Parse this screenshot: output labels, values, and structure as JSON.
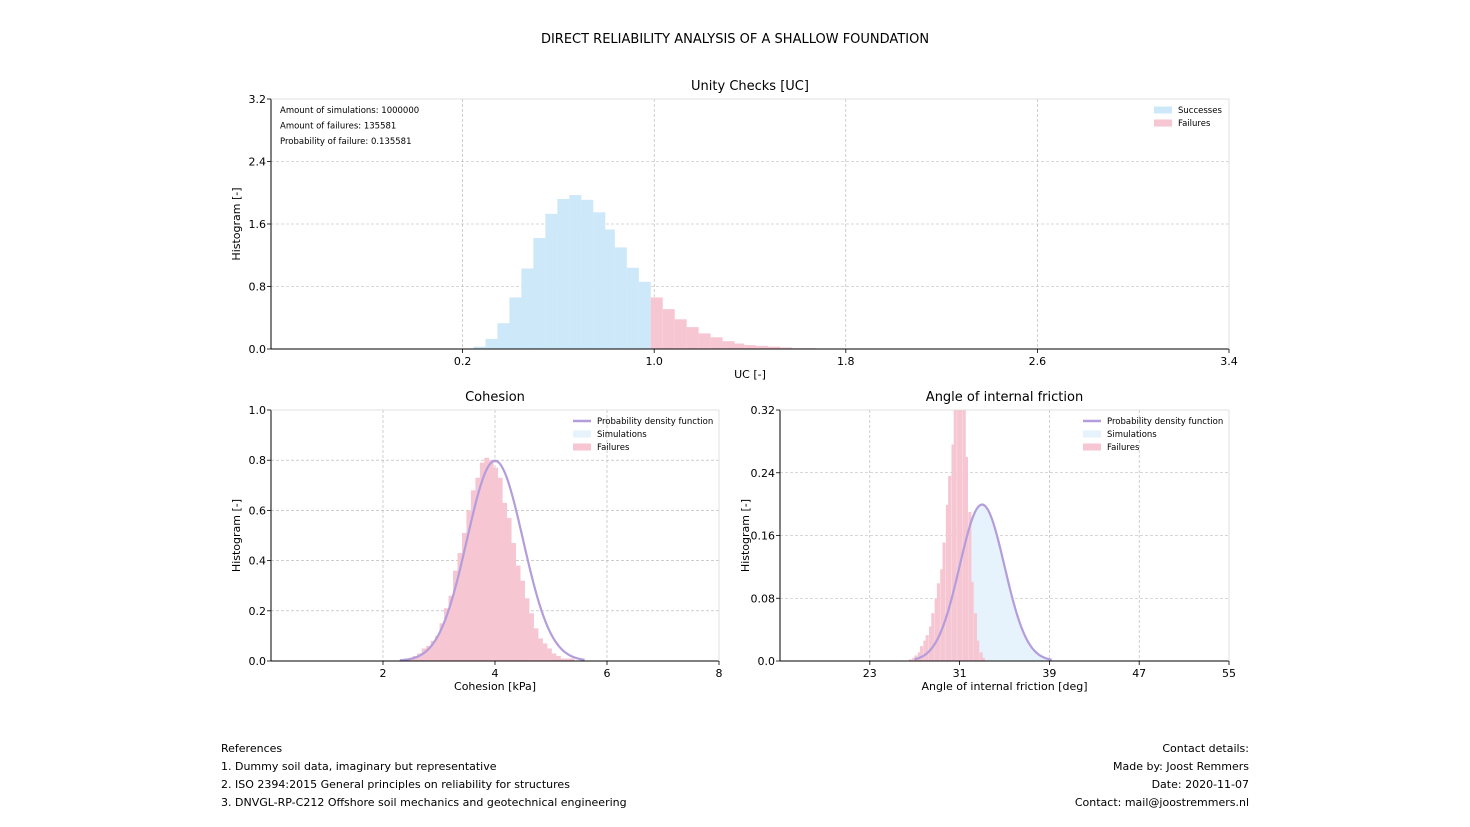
{
  "page": {
    "title": "DIRECT RELIABILITY ANALYSIS OF A SHALLOW FOUNDATION"
  },
  "references": {
    "heading": "References",
    "items": [
      "1. Dummy soil data, imaginary but representative",
      "2. ISO 2394:2015 General principles on reliability for structures",
      "3. DNVGL-RP-C212 Offshore soil mechanics and geotechnical engineering"
    ]
  },
  "contact": {
    "heading": "Contact details:",
    "items": [
      "Made by: Joost Remmers",
      "Date: 2020-11-07",
      "Contact: mail@joostremmers.nl"
    ]
  },
  "colors": {
    "success": "#cde8f8",
    "failure": "#f7c6d3",
    "simulation": "#e6f3fc",
    "pdf": "#b39ddb",
    "grid": "#b0b0b0"
  },
  "chart_data": [
    {
      "id": "uc",
      "type": "bar",
      "title": "Unity Checks [UC]",
      "xlabel": "UC [-]",
      "ylabel": "Histogram [-]",
      "xlim": [
        -0.6,
        3.4
      ],
      "ylim": [
        0,
        3.2
      ],
      "xticks": [
        "0.2",
        "1.0",
        "1.8",
        "2.6",
        "3.4"
      ],
      "yticks": [
        "0.0",
        "0.8",
        "1.6",
        "2.4",
        "3.2"
      ],
      "grid": true,
      "legend": "top-right",
      "annotations": [
        "Amount of simulations: 1000000",
        "Amount of failures: 135581",
        "Probability of failure: 0.135581"
      ],
      "bin_width": 0.049,
      "series": [
        {
          "name": "Successes",
          "x": [
            0.27,
            0.32,
            0.37,
            0.42,
            0.47,
            0.52,
            0.57,
            0.62,
            0.67,
            0.72,
            0.77,
            0.81,
            0.86,
            0.91,
            0.96,
            1.01
          ],
          "values": [
            0.03,
            0.13,
            0.33,
            0.66,
            1.03,
            1.42,
            1.73,
            1.92,
            1.97,
            1.91,
            1.75,
            1.53,
            1.3,
            1.04,
            0.86,
            0.03
          ]
        },
        {
          "name": "Failures",
          "x": [
            1.01,
            1.06,
            1.11,
            1.16,
            1.21,
            1.26,
            1.31,
            1.35,
            1.4,
            1.45,
            1.5,
            1.55,
            1.6,
            1.65
          ],
          "values": [
            0.66,
            0.51,
            0.38,
            0.28,
            0.2,
            0.15,
            0.1,
            0.07,
            0.05,
            0.04,
            0.03,
            0.02,
            0.01,
            0.01
          ]
        }
      ]
    },
    {
      "id": "cohesion",
      "type": "bar",
      "title": "Cohesion",
      "xlabel": "Cohesion [kPa]",
      "ylabel": "Histogram [-]",
      "xlim": [
        0,
        8
      ],
      "ylim": [
        0,
        1.0
      ],
      "xticks": [
        "2",
        "4",
        "6",
        "8"
      ],
      "yticks": [
        "0.0",
        "0.2",
        "0.4",
        "0.6",
        "0.8",
        "1.0"
      ],
      "grid": true,
      "legend": "top-right",
      "bin_width": 0.08,
      "series": [
        {
          "name": "Failures",
          "x": [
            2.41,
            2.49,
            2.57,
            2.65,
            2.73,
            2.81,
            2.89,
            2.97,
            3.05,
            3.13,
            3.21,
            3.29,
            3.37,
            3.45,
            3.53,
            3.61,
            3.69,
            3.77,
            3.85,
            3.93,
            4.01,
            4.09,
            4.17,
            4.25,
            4.33,
            4.41,
            4.49,
            4.57,
            4.65,
            4.73,
            4.81,
            4.89,
            4.97,
            5.05,
            5.13,
            5.21,
            5.29,
            5.37,
            5.45
          ],
          "values": [
            0.01,
            0.01,
            0.02,
            0.03,
            0.05,
            0.06,
            0.08,
            0.1,
            0.15,
            0.21,
            0.26,
            0.36,
            0.43,
            0.51,
            0.6,
            0.68,
            0.73,
            0.79,
            0.81,
            0.8,
            0.77,
            0.73,
            0.63,
            0.57,
            0.47,
            0.38,
            0.32,
            0.25,
            0.19,
            0.13,
            0.09,
            0.07,
            0.05,
            0.03,
            0.02,
            0.01,
            0.01,
            0.01,
            0.0
          ]
        }
      ],
      "pdf": {
        "name": "Probability density function",
        "mean": 4.0,
        "sd": 0.5,
        "range": [
          2.3,
          5.6
        ]
      },
      "legend_entries": [
        "Probability density function",
        "Simulations",
        "Failures"
      ]
    },
    {
      "id": "friction",
      "type": "bar",
      "title": "Angle of internal friction",
      "xlabel": "Angle of internal friction [deg]",
      "ylabel": "Histogram [-]",
      "xlim": [
        15,
        55
      ],
      "ylim": [
        0,
        0.32
      ],
      "xticks": [
        "23",
        "31",
        "39",
        "47",
        "55"
      ],
      "yticks": [
        "0.0",
        "0.08",
        "0.16",
        "0.24",
        "0.32"
      ],
      "grid": true,
      "legend": "top-right",
      "bin_width": 0.25,
      "simulations": {
        "name": "Simulations",
        "mean": 33.0,
        "sd": 2.0,
        "range": [
          27.0,
          39.2
        ]
      },
      "series": [
        {
          "name": "Failures",
          "x": [
            26.6,
            26.9,
            27.1,
            27.4,
            27.6,
            27.9,
            28.1,
            28.4,
            28.6,
            28.9,
            29.1,
            29.4,
            29.6,
            29.9,
            30.1,
            30.4,
            30.6,
            30.9,
            31.1,
            31.4,
            31.6,
            31.9,
            32.1,
            32.4,
            32.6,
            32.9,
            33.1
          ],
          "values": [
            0.002,
            0.004,
            0.007,
            0.011,
            0.019,
            0.026,
            0.033,
            0.044,
            0.061,
            0.079,
            0.099,
            0.117,
            0.151,
            0.199,
            0.236,
            0.276,
            0.32,
            0.32,
            0.32,
            0.32,
            0.26,
            0.19,
            0.101,
            0.061,
            0.026,
            0.011,
            0.004
          ]
        }
      ],
      "pdf": {
        "name": "Probability density function",
        "mean": 33.0,
        "sd": 2.0,
        "range": [
          27.0,
          39.2
        ]
      },
      "legend_entries": [
        "Probability density function",
        "Simulations",
        "Failures"
      ]
    }
  ]
}
